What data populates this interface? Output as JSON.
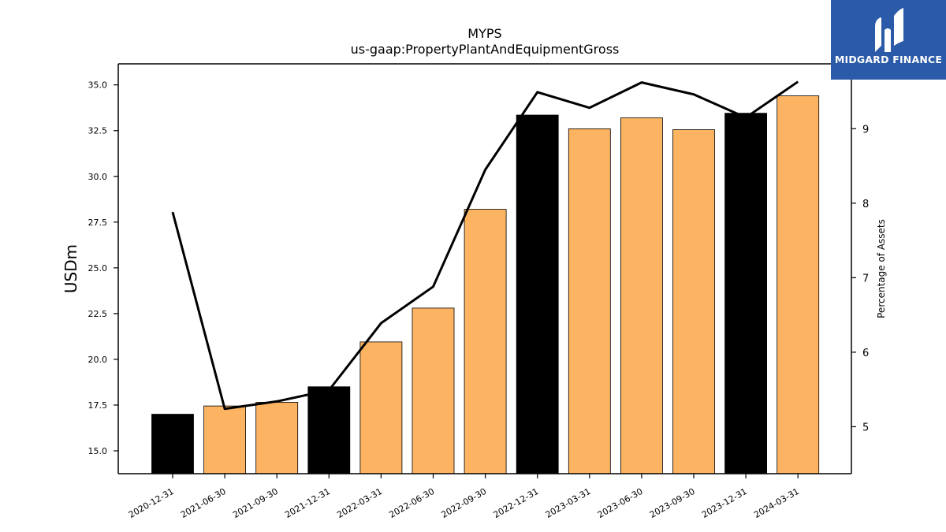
{
  "chart_data": {
    "type": "bar",
    "title": "MYPS",
    "subtitle": "us-gaap:PropertyPlantAndEquipmentGross",
    "ylabel": "USDm",
    "y2label": "Percentage of Assets",
    "categories": [
      "2020-12-31",
      "2021-06-30",
      "2021-09-30",
      "2021-12-31",
      "2022-03-31",
      "2022-06-30",
      "2022-09-30",
      "2022-12-31",
      "2023-03-31",
      "2023-06-30",
      "2023-09-30",
      "2023-12-31",
      "2024-03-31"
    ],
    "series": [
      {
        "type": "bar",
        "axis": "left",
        "values": [
          17.0,
          17.45,
          17.65,
          18.5,
          20.95,
          22.8,
          28.2,
          33.35,
          32.6,
          33.2,
          32.55,
          33.45,
          34.4
        ],
        "colors": [
          "#000000",
          "#fdb462",
          "#fdb462",
          "#000000",
          "#fdb462",
          "#fdb462",
          "#fdb462",
          "#000000",
          "#fdb462",
          "#fdb462",
          "#fdb462",
          "#000000",
          "#fdb462"
        ]
      },
      {
        "type": "line",
        "axis": "right",
        "color": "#000000",
        "values": [
          7.88,
          5.24,
          5.34,
          5.49,
          6.39,
          6.88,
          8.45,
          9.49,
          9.28,
          9.62,
          9.46,
          9.15,
          9.63
        ]
      }
    ],
    "ylim": [
      13.75,
      36.15
    ],
    "y2lim": [
      4.37,
      9.87
    ],
    "yticks": [
      "15.0",
      "17.5",
      "20.0",
      "22.5",
      "25.0",
      "27.5",
      "30.0",
      "32.5",
      "35.0"
    ],
    "y2ticks": [
      "5",
      "6",
      "7",
      "8",
      "9"
    ],
    "grid": false
  },
  "logo": {
    "text": "MIDGARD FINANCE",
    "color": "#2b5aa8"
  }
}
